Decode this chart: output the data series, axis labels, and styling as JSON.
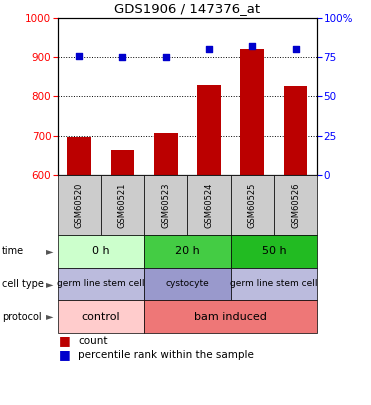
{
  "title": "GDS1906 / 147376_at",
  "samples": [
    "GSM60520",
    "GSM60521",
    "GSM60523",
    "GSM60524",
    "GSM60525",
    "GSM60526"
  ],
  "counts": [
    697,
    663,
    708,
    829,
    921,
    826
  ],
  "percentile_ranks": [
    76,
    75,
    75,
    80,
    82,
    80
  ],
  "ylim_left": [
    600,
    1000
  ],
  "ylim_right": [
    0,
    100
  ],
  "yticks_left": [
    600,
    700,
    800,
    900,
    1000
  ],
  "yticks_right": [
    0,
    25,
    50,
    75,
    100
  ],
  "bar_color": "#bb0000",
  "scatter_color": "#0000cc",
  "time_configs": [
    {
      "start": 0,
      "end": 2,
      "color": "#ccffcc",
      "label": "0 h"
    },
    {
      "start": 2,
      "end": 4,
      "color": "#44cc44",
      "label": "20 h"
    },
    {
      "start": 4,
      "end": 6,
      "color": "#22bb22",
      "label": "50 h"
    }
  ],
  "cell_configs": [
    {
      "start": 0,
      "end": 2,
      "color": "#bbbbdd",
      "label": "germ line stem cell"
    },
    {
      "start": 2,
      "end": 4,
      "color": "#9999cc",
      "label": "cystocyte"
    },
    {
      "start": 4,
      "end": 6,
      "color": "#bbbbdd",
      "label": "germ line stem cell"
    }
  ],
  "prot_configs": [
    {
      "start": 0,
      "end": 2,
      "color": "#ffcccc",
      "label": "control"
    },
    {
      "start": 2,
      "end": 6,
      "color": "#ee7777",
      "label": "bam induced"
    }
  ],
  "row_labels": [
    "time",
    "cell type",
    "protocol"
  ],
  "legend_items": [
    "count",
    "percentile rank within the sample"
  ],
  "legend_colors": [
    "#bb0000",
    "#0000cc"
  ],
  "sample_bg_color": "#cccccc"
}
